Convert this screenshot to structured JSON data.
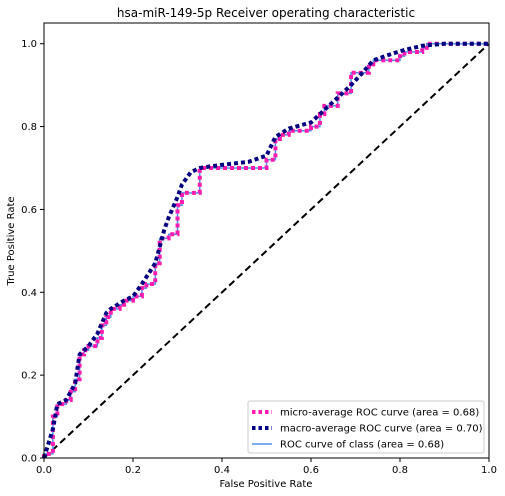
{
  "chart_data": {
    "type": "line",
    "title": "hsa-miR-149-5p Receiver operating characteristic",
    "xlabel": "False Positive Rate",
    "ylabel": "True Positive Rate",
    "xlim": [
      0,
      1
    ],
    "ylim": [
      0,
      1.05
    ],
    "xticks": [
      "0.0",
      "0.2",
      "0.4",
      "0.6",
      "0.8",
      "1.0"
    ],
    "yticks": [
      "0.0",
      "0.2",
      "0.4",
      "0.6",
      "0.8",
      "1.0"
    ],
    "legend_placement": "lower-right",
    "series": [
      {
        "name": "micro-average ROC curve (area = 0.68)",
        "color": "#ff1ab0",
        "style": "dotted",
        "x": [
          0.0,
          0.0,
          0.02,
          0.02,
          0.03,
          0.03,
          0.05,
          0.05,
          0.06,
          0.06,
          0.07,
          0.07,
          0.08,
          0.08,
          0.09,
          0.09,
          0.1,
          0.1,
          0.12,
          0.12,
          0.13,
          0.13,
          0.14,
          0.14,
          0.15,
          0.15,
          0.17,
          0.17,
          0.18,
          0.18,
          0.2,
          0.2,
          0.22,
          0.22,
          0.23,
          0.23,
          0.25,
          0.25,
          0.26,
          0.26,
          0.28,
          0.28,
          0.3,
          0.3,
          0.31,
          0.31,
          0.35,
          0.35,
          0.5,
          0.5,
          0.52,
          0.52,
          0.53,
          0.53,
          0.55,
          0.55,
          0.6,
          0.6,
          0.62,
          0.62,
          0.63,
          0.63,
          0.66,
          0.66,
          0.69,
          0.69,
          0.73,
          0.73,
          0.74,
          0.74,
          0.8,
          0.8,
          0.81,
          0.81,
          0.85,
          0.85,
          0.86,
          0.86,
          0.98,
          0.98,
          1.0
        ],
        "y": [
          0.0,
          0.01,
          0.01,
          0.1,
          0.1,
          0.13,
          0.13,
          0.14,
          0.14,
          0.16,
          0.16,
          0.19,
          0.19,
          0.25,
          0.25,
          0.26,
          0.26,
          0.27,
          0.27,
          0.29,
          0.29,
          0.32,
          0.32,
          0.34,
          0.34,
          0.36,
          0.36,
          0.37,
          0.37,
          0.38,
          0.38,
          0.39,
          0.39,
          0.41,
          0.41,
          0.42,
          0.42,
          0.47,
          0.47,
          0.53,
          0.53,
          0.54,
          0.54,
          0.61,
          0.61,
          0.64,
          0.64,
          0.7,
          0.7,
          0.72,
          0.72,
          0.77,
          0.77,
          0.78,
          0.78,
          0.79,
          0.79,
          0.8,
          0.8,
          0.83,
          0.83,
          0.85,
          0.85,
          0.88,
          0.88,
          0.93,
          0.93,
          0.95,
          0.95,
          0.96,
          0.96,
          0.97,
          0.97,
          0.98,
          0.98,
          0.99,
          0.99,
          1.0,
          1.0,
          1.0,
          1.0
        ]
      },
      {
        "name": "macro-average ROC curve (area = 0.70)",
        "color": "#000080",
        "style": "dotted",
        "x": [
          0.0,
          0.02,
          0.03,
          0.05,
          0.07,
          0.08,
          0.1,
          0.12,
          0.14,
          0.15,
          0.18,
          0.2,
          0.22,
          0.25,
          0.27,
          0.28,
          0.3,
          0.31,
          0.33,
          0.35,
          0.38,
          0.42,
          0.46,
          0.5,
          0.52,
          0.55,
          0.6,
          0.63,
          0.66,
          0.69,
          0.72,
          0.74,
          0.78,
          0.81,
          0.85,
          0.9,
          0.95,
          1.0
        ],
        "y": [
          0.0,
          0.07,
          0.13,
          0.14,
          0.18,
          0.25,
          0.27,
          0.3,
          0.35,
          0.36,
          0.38,
          0.39,
          0.42,
          0.47,
          0.55,
          0.58,
          0.63,
          0.66,
          0.69,
          0.7,
          0.705,
          0.71,
          0.715,
          0.73,
          0.775,
          0.795,
          0.81,
          0.84,
          0.87,
          0.9,
          0.935,
          0.96,
          0.975,
          0.985,
          0.995,
          1.0,
          1.0,
          1.0
        ]
      },
      {
        "name": "ROC curve of class (area = 0.68)",
        "color": "#4e8fe6",
        "style": "solid",
        "x": [
          0.0,
          0.0,
          0.02,
          0.02,
          0.03,
          0.03,
          0.05,
          0.05,
          0.06,
          0.06,
          0.07,
          0.07,
          0.08,
          0.08,
          0.09,
          0.09,
          0.1,
          0.1,
          0.12,
          0.12,
          0.13,
          0.13,
          0.14,
          0.14,
          0.15,
          0.15,
          0.17,
          0.17,
          0.18,
          0.18,
          0.2,
          0.2,
          0.22,
          0.22,
          0.23,
          0.23,
          0.25,
          0.25,
          0.26,
          0.26,
          0.28,
          0.28,
          0.3,
          0.3,
          0.31,
          0.31,
          0.35,
          0.35,
          0.5,
          0.5,
          0.52,
          0.52,
          0.53,
          0.53,
          0.55,
          0.55,
          0.6,
          0.6,
          0.62,
          0.62,
          0.63,
          0.63,
          0.66,
          0.66,
          0.69,
          0.69,
          0.73,
          0.73,
          0.74,
          0.74,
          0.8,
          0.8,
          0.81,
          0.81,
          0.85,
          0.85,
          0.86,
          0.86,
          0.98,
          0.98,
          1.0
        ],
        "y": [
          0.0,
          0.01,
          0.01,
          0.1,
          0.1,
          0.13,
          0.13,
          0.14,
          0.14,
          0.16,
          0.16,
          0.19,
          0.19,
          0.25,
          0.25,
          0.26,
          0.26,
          0.27,
          0.27,
          0.29,
          0.29,
          0.32,
          0.32,
          0.34,
          0.34,
          0.36,
          0.36,
          0.37,
          0.37,
          0.38,
          0.38,
          0.39,
          0.39,
          0.41,
          0.41,
          0.42,
          0.42,
          0.47,
          0.47,
          0.53,
          0.53,
          0.54,
          0.54,
          0.61,
          0.61,
          0.64,
          0.64,
          0.7,
          0.7,
          0.72,
          0.72,
          0.77,
          0.77,
          0.78,
          0.78,
          0.79,
          0.79,
          0.8,
          0.8,
          0.83,
          0.83,
          0.85,
          0.85,
          0.88,
          0.88,
          0.93,
          0.93,
          0.95,
          0.95,
          0.96,
          0.96,
          0.97,
          0.97,
          0.98,
          0.98,
          0.99,
          0.99,
          1.0,
          1.0,
          1.0,
          1.0
        ]
      },
      {
        "name": "",
        "color": "#000000",
        "style": "dashed",
        "x": [
          0,
          1
        ],
        "y": [
          0,
          1
        ]
      }
    ]
  }
}
